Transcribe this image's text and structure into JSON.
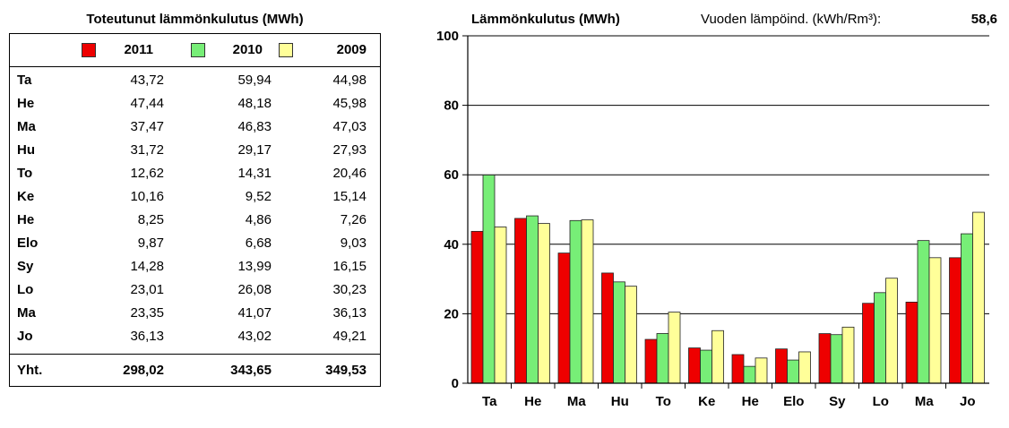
{
  "table": {
    "title": "Toteutunut lämmönkulutus (MWh)",
    "years": [
      "2011",
      "2010",
      "2009"
    ],
    "rows": [
      {
        "month": "Ta",
        "values": [
          "43,72",
          "59,94",
          "44,98"
        ]
      },
      {
        "month": "He",
        "values": [
          "47,44",
          "48,18",
          "45,98"
        ]
      },
      {
        "month": "Ma",
        "values": [
          "37,47",
          "46,83",
          "47,03"
        ]
      },
      {
        "month": "Hu",
        "values": [
          "31,72",
          "29,17",
          "27,93"
        ]
      },
      {
        "month": "To",
        "values": [
          "12,62",
          "14,31",
          "20,46"
        ]
      },
      {
        "month": "Ke",
        "values": [
          "10,16",
          "9,52",
          "15,14"
        ]
      },
      {
        "month": "He",
        "values": [
          "8,25",
          "4,86",
          "7,26"
        ]
      },
      {
        "month": "Elo",
        "values": [
          "9,87",
          "6,68",
          "9,03"
        ]
      },
      {
        "month": "Sy",
        "values": [
          "14,28",
          "13,99",
          "16,15"
        ]
      },
      {
        "month": "Lo",
        "values": [
          "23,01",
          "26,08",
          "30,23"
        ]
      },
      {
        "month": "Ma",
        "values": [
          "23,35",
          "41,07",
          "36,13"
        ]
      },
      {
        "month": "Jo",
        "values": [
          "36,13",
          "43,02",
          "49,21"
        ]
      }
    ],
    "total": {
      "label": "Yht.",
      "values": [
        "298,02",
        "343,65",
        "349,53"
      ]
    }
  },
  "index": {
    "label": "Vuoden lämpöind. (kWh/Rm³):",
    "value": "58,6"
  },
  "colors": {
    "2011": "#ee0000",
    "2010": "#77ee77",
    "2009": "#ffff99"
  },
  "chart_data": {
    "type": "bar",
    "title": "Lämmönkulutus (MWh)",
    "categories": [
      "Ta",
      "He",
      "Ma",
      "Hu",
      "To",
      "Ke",
      "He",
      "Elo",
      "Sy",
      "Lo",
      "Ma",
      "Jo"
    ],
    "series": [
      {
        "name": "2011",
        "color": "#ee0000",
        "values": [
          43.72,
          47.44,
          37.47,
          31.72,
          12.62,
          10.16,
          8.25,
          9.87,
          14.28,
          23.01,
          23.35,
          36.13
        ]
      },
      {
        "name": "2010",
        "color": "#77ee77",
        "values": [
          59.94,
          48.18,
          46.83,
          29.17,
          14.31,
          9.52,
          4.86,
          6.68,
          13.99,
          26.08,
          41.07,
          43.02
        ]
      },
      {
        "name": "2009",
        "color": "#ffff99",
        "values": [
          44.98,
          45.98,
          47.03,
          27.93,
          20.46,
          15.14,
          7.26,
          9.03,
          16.15,
          30.23,
          36.13,
          49.21
        ]
      }
    ],
    "ylim": [
      0,
      100
    ],
    "yticks": [
      0,
      20,
      40,
      60,
      80,
      100
    ],
    "grid": true,
    "legend": "table-header"
  }
}
